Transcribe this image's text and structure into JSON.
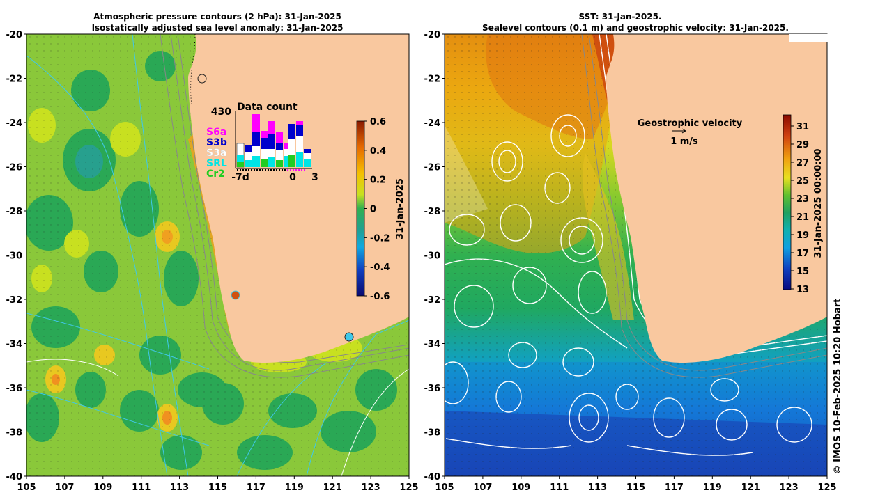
{
  "left_panel": {
    "title_line1": "Atmospheric pressure contours (2 hPa): 31-Jan-2025",
    "title_line2": "Isostatically adjusted sea level anomaly: 31-Jan-2025",
    "y_ticks": [
      "-20",
      "-22",
      "-24",
      "-26",
      "-28",
      "-30",
      "-32",
      "-34",
      "-36",
      "-38",
      "-40"
    ],
    "x_ticks": [
      "105",
      "107",
      "109",
      "111",
      "113",
      "115",
      "117",
      "119",
      "121",
      "123",
      "125"
    ],
    "colorbar": {
      "ticks": [
        "0.6",
        "0.4",
        "0.2",
        "0",
        "-0.2",
        "-0.4",
        "-0.6"
      ],
      "label": "31-Jan-2025"
    },
    "inset": {
      "title": "Data count",
      "max_count": "430",
      "x_ticks": [
        "-7d",
        "0",
        "3"
      ],
      "legend": [
        {
          "label": "S6a",
          "color": "#ff00ff"
        },
        {
          "label": "S3b",
          "color": "#0000cc"
        },
        {
          "label": "S3a",
          "color": "#ffffff"
        },
        {
          "label": "SRL",
          "color": "#00e5e5"
        },
        {
          "label": "Cr2",
          "color": "#22cc22"
        }
      ]
    }
  },
  "right_panel": {
    "title_line1": "SST: 31-Jan-2025.",
    "title_line2": "Sealevel contours (0.1 m) and geostrophic velocity: 31-Jan-2025.",
    "y_ticks": [
      "-20",
      "-22",
      "-24",
      "-26",
      "-28",
      "-30",
      "-32",
      "-34",
      "-36",
      "-38",
      "-40"
    ],
    "x_ticks": [
      "105",
      "107",
      "109",
      "111",
      "113",
      "115",
      "117",
      "119",
      "121",
      "123",
      "125"
    ],
    "colorbar": {
      "ticks": [
        "31",
        "29",
        "27",
        "25",
        "23",
        "21",
        "19",
        "17",
        "15",
        "13"
      ],
      "label": "31-Jan-2025 00:00:00"
    },
    "velocity_legend": {
      "title": "Geostrophic velocity",
      "scale": "1 m/s"
    }
  },
  "credit": "© IMOS 10-Feb-2025 10:20 Hobart",
  "colors": {
    "land": "#f9c89f",
    "slice_green": "#3fb44a",
    "sst_cool": "#1b43b8",
    "sst_warm": "#c2381a"
  }
}
